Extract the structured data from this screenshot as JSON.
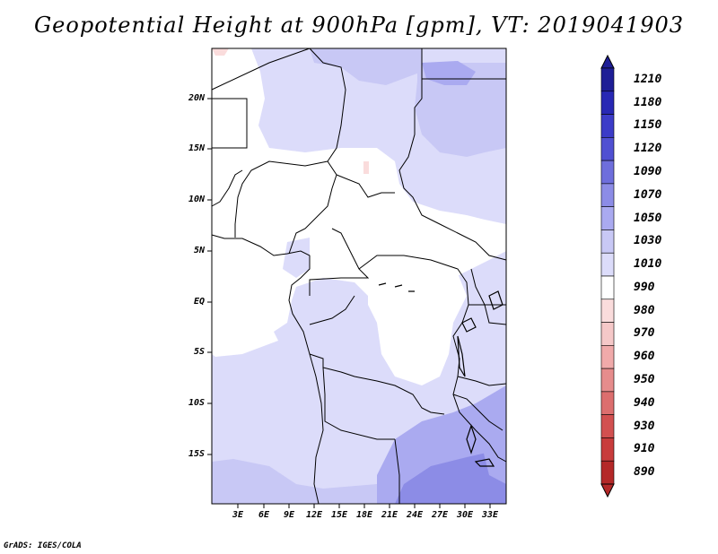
{
  "title": "Geopotential Height at 900hPa [gpm], VT: 2019041903",
  "credit": "GrADS: IGES/COLA",
  "lat_labels": [
    "20N",
    "15N",
    "10N",
    "5N",
    "EQ",
    "5S",
    "10S",
    "15S"
  ],
  "lon_labels": [
    "3E",
    "6E",
    "9E",
    "12E",
    "15E",
    "18E",
    "21E",
    "24E",
    "27E",
    "30E",
    "33E"
  ],
  "colorbar": {
    "levels": [
      "1210",
      "1180",
      "1150",
      "1120",
      "1090",
      "1070",
      "1050",
      "1030",
      "1010",
      "990",
      "980",
      "970",
      "960",
      "950",
      "940",
      "930",
      "910",
      "890"
    ],
    "colors": [
      "#1e1e96",
      "#2828b4",
      "#3c3cc8",
      "#5050d2",
      "#6e6edc",
      "#8c8ce6",
      "#aaaaf0",
      "#c8c8f5",
      "#dcdcfa",
      "#ffffff",
      "#fadcdc",
      "#f5c8c8",
      "#f0aaaa",
      "#e68c8c",
      "#dc6e6e",
      "#d25050",
      "#c83c3c",
      "#b42828"
    ]
  }
}
